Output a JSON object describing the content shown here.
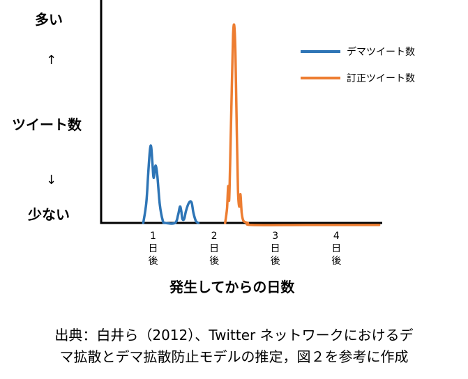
{
  "chart_data": {
    "type": "line",
    "xlabel": "発生してからの日数",
    "y_axis": {
      "top_label": "多い",
      "up_arrow": "↑",
      "middle_label": "ツイート数",
      "down_arrow": "↓",
      "bottom_label": "少ない"
    },
    "xlim": [
      0.15,
      4.75
    ],
    "ylim": [
      0,
      1
    ],
    "x_ticks": [
      {
        "x": 1,
        "lines": [
          "1",
          "日",
          "後"
        ]
      },
      {
        "x": 2,
        "lines": [
          "2",
          "日",
          "後"
        ]
      },
      {
        "x": 3,
        "lines": [
          "3",
          "日",
          "後"
        ]
      },
      {
        "x": 4,
        "lines": [
          "4",
          "日",
          "後"
        ]
      }
    ],
    "grid": false,
    "legend_position": "top-right",
    "series": [
      {
        "name": "デマツイート数",
        "color": "#2e75b6",
        "points": [
          [
            0.84,
            0
          ],
          [
            0.89,
            0.1
          ],
          [
            0.92,
            0.24
          ],
          [
            0.95,
            0.36
          ],
          [
            0.97,
            0.37
          ],
          [
            0.99,
            0.29
          ],
          [
            1.01,
            0.22
          ],
          [
            1.04,
            0.28
          ],
          [
            1.07,
            0.23
          ],
          [
            1.11,
            0.09
          ],
          [
            1.16,
            0.01
          ],
          [
            1.2,
            0
          ],
          [
            1.36,
            0
          ],
          [
            1.41,
            0.04
          ],
          [
            1.44,
            0.08
          ],
          [
            1.46,
            0.06
          ],
          [
            1.48,
            0.02
          ],
          [
            1.51,
            0.02
          ],
          [
            1.54,
            0.06
          ],
          [
            1.59,
            0.1
          ],
          [
            1.63,
            0.1
          ],
          [
            1.66,
            0.05
          ],
          [
            1.7,
            0.01
          ],
          [
            1.74,
            0
          ]
        ]
      },
      {
        "name": "訂正ツイート数",
        "color": "#ed7d31",
        "points": [
          [
            2.18,
            0
          ],
          [
            2.21,
            0.07
          ],
          [
            2.23,
            0.18
          ],
          [
            2.245,
            0.11
          ],
          [
            2.26,
            0.28
          ],
          [
            2.29,
            0.68
          ],
          [
            2.31,
            0.92
          ],
          [
            2.33,
            0.96
          ],
          [
            2.35,
            0.8
          ],
          [
            2.37,
            0.45
          ],
          [
            2.39,
            0.16
          ],
          [
            2.41,
            0.08
          ],
          [
            2.43,
            0.14
          ],
          [
            2.45,
            0.05
          ],
          [
            2.48,
            0.01
          ],
          [
            2.55,
            0
          ],
          [
            2.62,
            -0.01
          ],
          [
            3.5,
            -0.01
          ],
          [
            4.7,
            -0.01
          ]
        ]
      }
    ]
  },
  "caption": {
    "line1": "出典：白井ら（2012）、Twitter ネットワークにおけるデ",
    "line2": "マ拡散とデマ拡散防止モデルの推定，図２を参考に作成"
  }
}
